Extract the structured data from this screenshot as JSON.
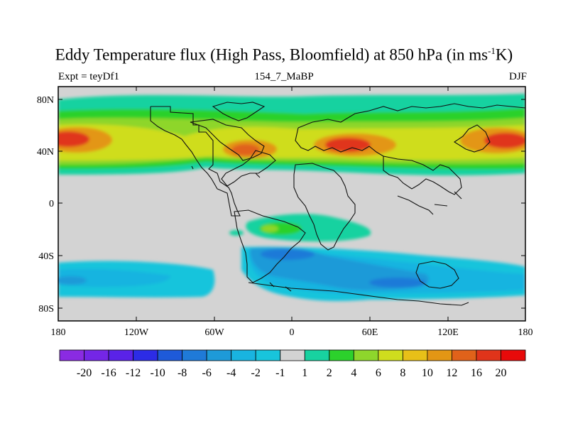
{
  "title": {
    "main": "Eddy Temperature flux (High Pass, Bloomfield) at 850 hPa (in ms",
    "sup": "-1",
    "tail": "K)"
  },
  "subtitle_left": "Expt = teyDf1",
  "subtitle_center": "154_7_MaBP",
  "subtitle_right": "DJF",
  "x_ticks": [
    "180",
    "120W",
    "60W",
    "0",
    "60E",
    "120E",
    "180"
  ],
  "y_ticks": [
    "80N",
    "40N",
    "0",
    "40S",
    "80S"
  ],
  "colorbar": {
    "labels": [
      "-20",
      "-16",
      "-12",
      "-10",
      "-8",
      "-6",
      "-4",
      "-2",
      "-1",
      "1",
      "2",
      "4",
      "6",
      "8",
      "10",
      "12",
      "16",
      "20"
    ],
    "colors": [
      "#8a2be2",
      "#7426e6",
      "#5a22e8",
      "#2c2ce6",
      "#1e5ad9",
      "#1f7ad8",
      "#1e9ad8",
      "#19b4e0",
      "#18c4dc",
      "#d3d3d3",
      "#18d2a0",
      "#2cd12c",
      "#8ed62c",
      "#cfdd1e",
      "#e8c018",
      "#e39614",
      "#e0621a",
      "#e0341a",
      "#e80a0a"
    ]
  },
  "map": {
    "fill_colors": {
      "land_ocean": "#d3d3d3",
      "teal": "#18d2a0",
      "green": "#2cd12c",
      "lime": "#8ed62c",
      "yellow": "#cfdd1e",
      "orange": "#e39614",
      "redorange": "#e0621a",
      "red": "#e0341a",
      "cyan": "#18c4dc",
      "lightblue": "#19b4e0",
      "blue": "#1e9ad8",
      "darkblue": "#1f7ad8"
    }
  }
}
